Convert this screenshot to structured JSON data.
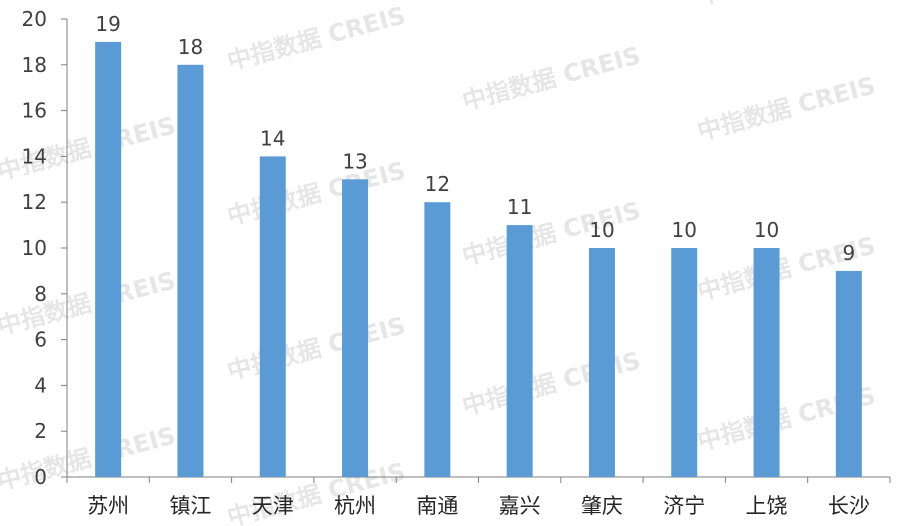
{
  "watermark": "中指数据 CREIS",
  "colors": {
    "bar": "#5b9bd5",
    "axis": "#7f7f7f",
    "text": "#404040"
  },
  "chart_data": {
    "type": "bar",
    "categories": [
      "苏州",
      "镇江",
      "天津",
      "杭州",
      "南通",
      "嘉兴",
      "肇庆",
      "济宁",
      "上饶",
      "长沙"
    ],
    "values": [
      19,
      18,
      14,
      13,
      12,
      11,
      10,
      10,
      10,
      9
    ],
    "data_labels": [
      "19",
      "18",
      "14",
      "13",
      "12",
      "11",
      "10",
      "10",
      "10",
      "9"
    ],
    "yticks": [
      "0",
      "2",
      "4",
      "6",
      "8",
      "10",
      "12",
      "14",
      "16",
      "18",
      "20"
    ],
    "ylim": [
      0,
      20
    ],
    "grid": false,
    "legend": "none"
  }
}
